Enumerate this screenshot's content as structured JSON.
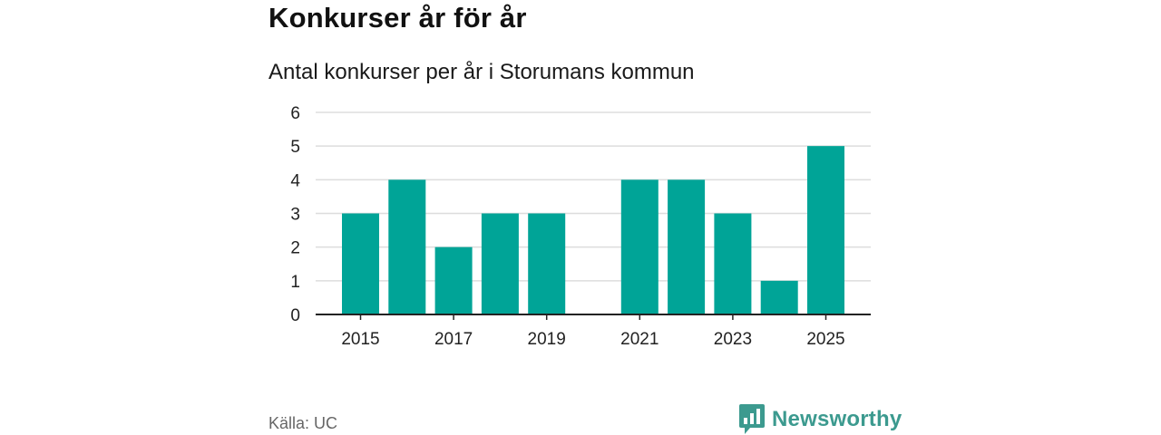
{
  "header": {
    "title": "Konkurser år för år",
    "subtitle": "Antal konkurser per år i Storumans kommun"
  },
  "footer": {
    "source": "Källa: UC",
    "brand": "Newsworthy",
    "brand_icon": "bar-chart-speech-bubble-icon"
  },
  "colors": {
    "bar": "#00a497",
    "grid": "#dddddd",
    "axis": "#222222",
    "brand": "#3c9a8f"
  },
  "chart_data": {
    "type": "bar",
    "title": "Konkurser år för år",
    "subtitle": "Antal konkurser per år i Storumans kommun",
    "xlabel": "",
    "ylabel": "",
    "categories": [
      2015,
      2016,
      2017,
      2018,
      2019,
      2020,
      2021,
      2022,
      2023,
      2024,
      2025
    ],
    "values": [
      3,
      4,
      2,
      3,
      3,
      0,
      4,
      4,
      3,
      1,
      5
    ],
    "x_tick_labels": [
      "2015",
      "2017",
      "2019",
      "2021",
      "2023",
      "2025"
    ],
    "y_ticks": [
      0,
      1,
      2,
      3,
      4,
      5,
      6
    ],
    "ylim": [
      0,
      6
    ],
    "grid": true,
    "legend": "none"
  }
}
